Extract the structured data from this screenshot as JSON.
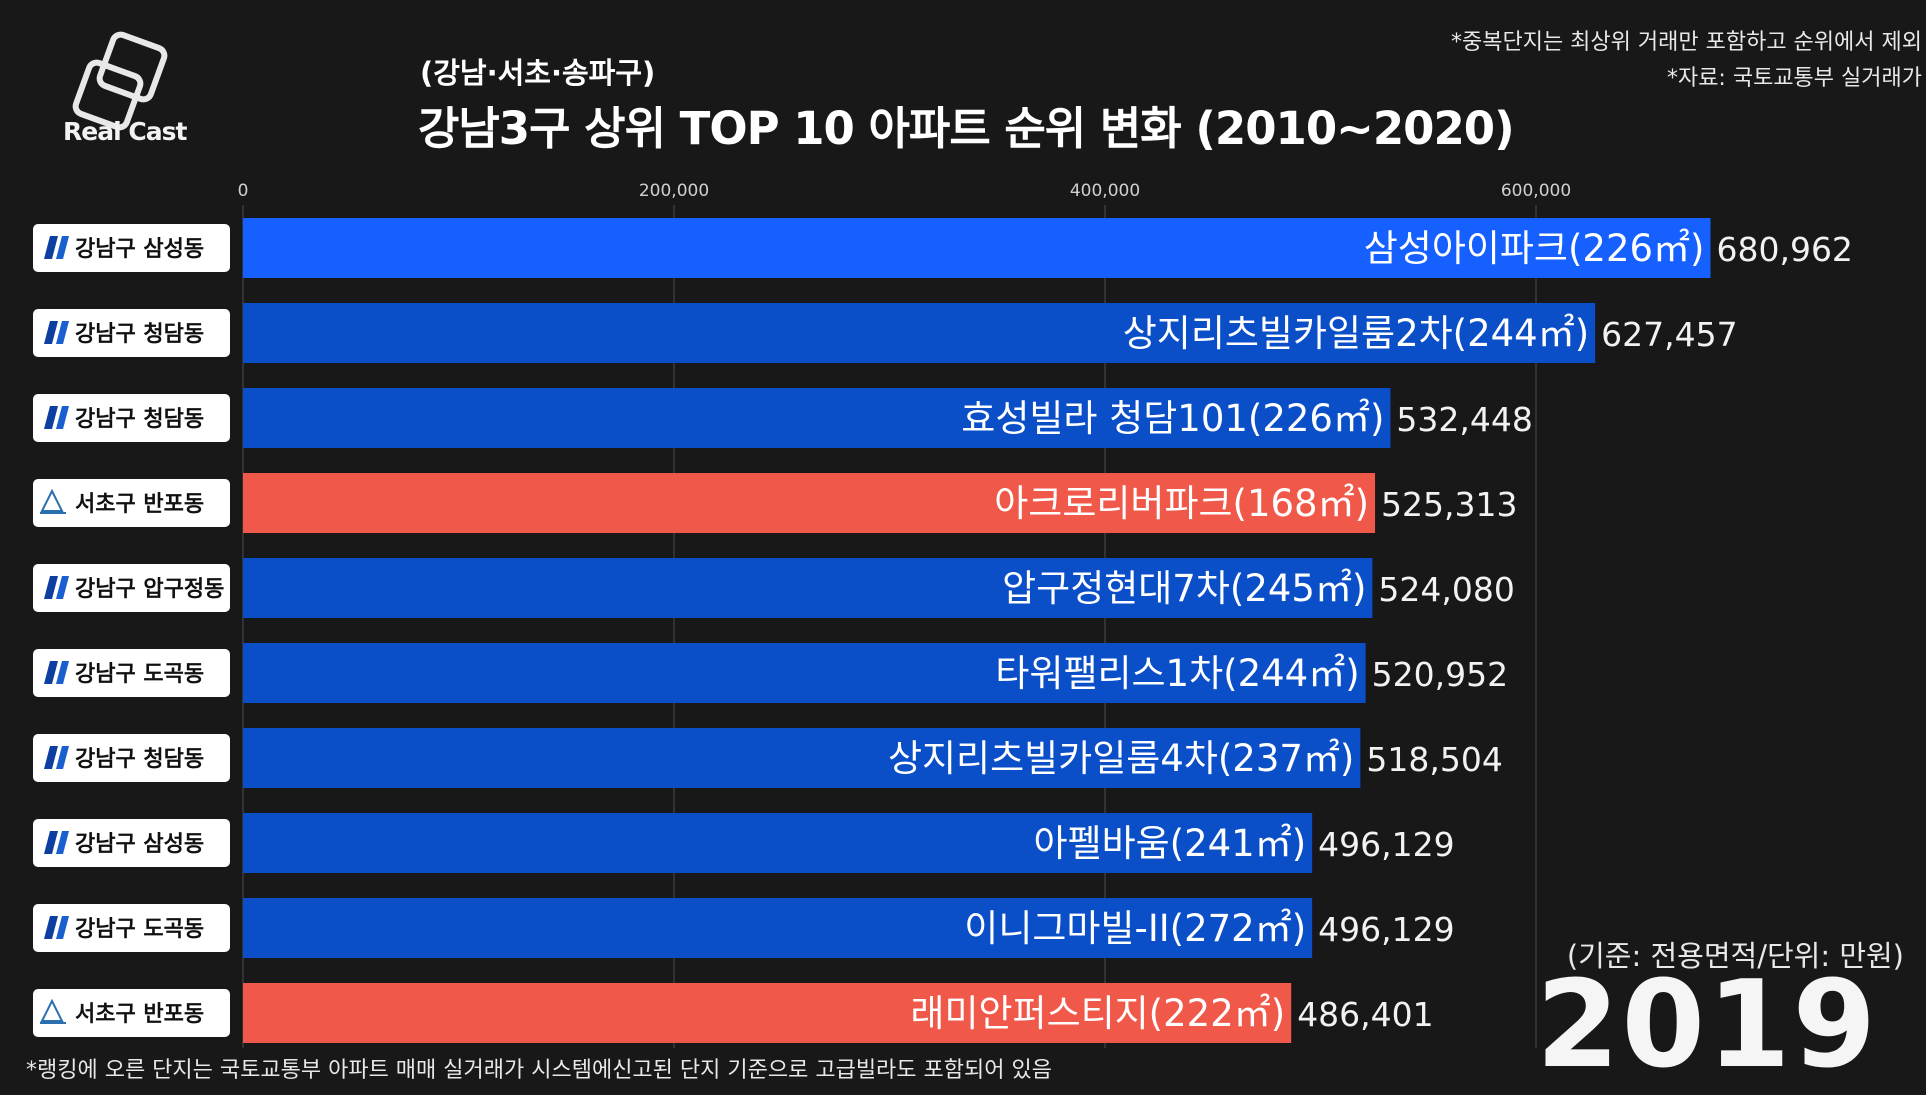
{
  "header": {
    "logo_text": "Real Cast",
    "subtitle": "(강남·서초·송파구)",
    "title": "강남3구 상위 TOP 10 아파트 순위 변화 (2010~2020)",
    "note1": "*중복단지는 최상위 거래만 포함하고 순위에서 제외",
    "note2": "*자료: 국토교통부 실거래가"
  },
  "footer": {
    "footnote": "*랭킹에 오른 단지는 국토교통부 아파트 매매 실거래가 시스템에신고된 단지 기준으로 고급빌라도 포함되어 있음",
    "unit": "(기준: 전용면적/단위: 만원)",
    "year": "2019"
  },
  "colors": {
    "gangnam": "#0a4fc8",
    "gangnam_top": "#1560ff",
    "seocho": "#f0594a",
    "background": "#181818"
  },
  "chart_data": {
    "type": "bar",
    "orientation": "horizontal",
    "xlim": [
      0,
      700000
    ],
    "ticks": [
      0,
      200000,
      400000,
      600000
    ],
    "tick_labels": [
      "0",
      "200,000",
      "400,000",
      "600,000"
    ],
    "grid": true,
    "items": [
      {
        "district": "강남구 삼성동",
        "name": "삼성아이파크",
        "area": "(226㎡)",
        "value": 680962,
        "value_label": "680,962",
        "group": "gangnam_top",
        "badge_icon": "gangnam-logo-icon"
      },
      {
        "district": "강남구 청담동",
        "name": "상지리츠빌카일룸2차",
        "area": "(244㎡)",
        "value": 627457,
        "value_label": "627,457",
        "group": "gangnam",
        "badge_icon": "gangnam-logo-icon"
      },
      {
        "district": "강남구 청담동",
        "name": "효성빌라 청담101",
        "area": "(226㎡)",
        "value": 532448,
        "value_label": "532,448",
        "group": "gangnam",
        "badge_icon": "gangnam-logo-icon"
      },
      {
        "district": "서초구 반포동",
        "name": "아크로리버파크",
        "area": "(168㎡)",
        "value": 525313,
        "value_label": "525,313",
        "group": "seocho",
        "badge_icon": "seocho-logo-icon"
      },
      {
        "district": "강남구 압구정동",
        "name": "압구정현대7차",
        "area": "(245㎡)",
        "value": 524080,
        "value_label": "524,080",
        "group": "gangnam",
        "badge_icon": "gangnam-logo-icon"
      },
      {
        "district": "강남구 도곡동",
        "name": "타워팰리스1차",
        "area": "(244㎡)",
        "value": 520952,
        "value_label": "520,952",
        "group": "gangnam",
        "badge_icon": "gangnam-logo-icon"
      },
      {
        "district": "강남구 청담동",
        "name": "상지리츠빌카일룸4차",
        "area": "(237㎡)",
        "value": 518504,
        "value_label": "518,504",
        "group": "gangnam",
        "badge_icon": "gangnam-logo-icon"
      },
      {
        "district": "강남구 삼성동",
        "name": "아펠바움",
        "area": "(241㎡)",
        "value": 496129,
        "value_label": "496,129",
        "group": "gangnam",
        "badge_icon": "gangnam-logo-icon"
      },
      {
        "district": "강남구 도곡동",
        "name": "이니그마빌-II",
        "area": "(272㎡)",
        "value": 496129,
        "value_label": "496,129",
        "group": "gangnam",
        "badge_icon": "gangnam-logo-icon"
      },
      {
        "district": "서초구 반포동",
        "name": "래미안퍼스티지",
        "area": "(222㎡)",
        "value": 486401,
        "value_label": "486,401",
        "group": "seocho",
        "badge_icon": "seocho-logo-icon"
      }
    ]
  }
}
